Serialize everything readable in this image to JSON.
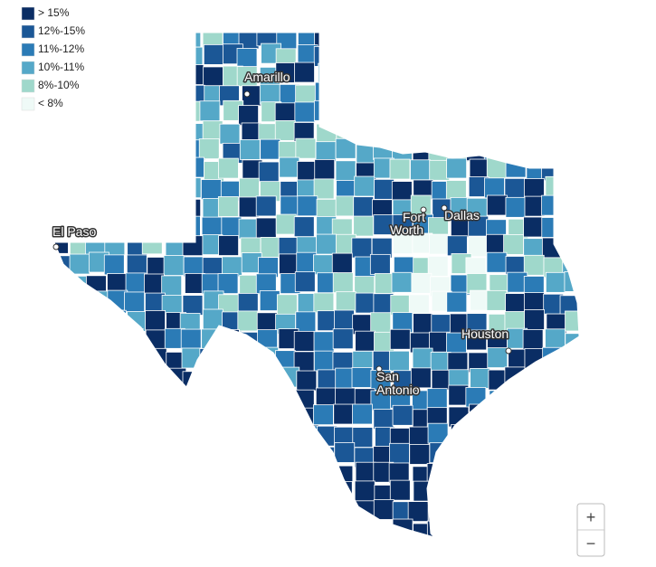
{
  "legend": [
    {
      "label": "> 15%",
      "color": "#0a2d64"
    },
    {
      "label": "12%-15%",
      "color": "#1b5796"
    },
    {
      "label": "11%-12%",
      "color": "#2b7bb6"
    },
    {
      "label": "10%-11%",
      "color": "#55a8c8"
    },
    {
      "label": "8%-10%",
      "color": "#9fd8cb"
    },
    {
      "label": "< 8%",
      "color": "#effaf7"
    }
  ],
  "cities": [
    "Amarillo",
    "Fort Worth",
    "Dallas",
    "El Paso",
    "Houston",
    "San Antonio"
  ],
  "zoom": {
    "in": "+",
    "out": "−"
  }
}
